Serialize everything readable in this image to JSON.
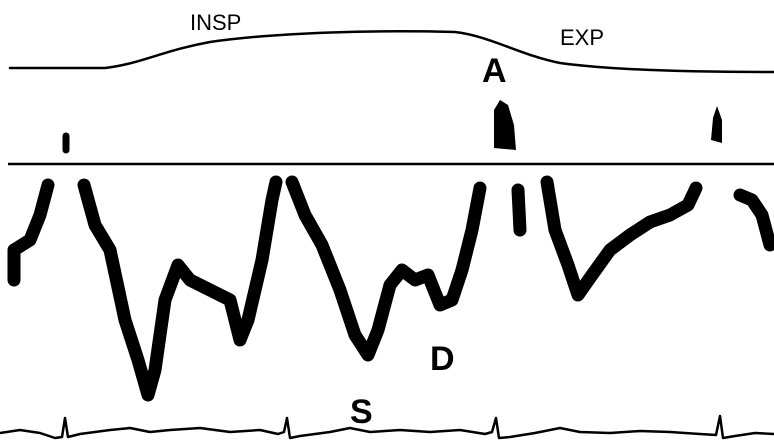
{
  "labels": {
    "insp": "INSP",
    "exp": "EXP",
    "a": "A",
    "d": "D",
    "s": "S"
  }
}
